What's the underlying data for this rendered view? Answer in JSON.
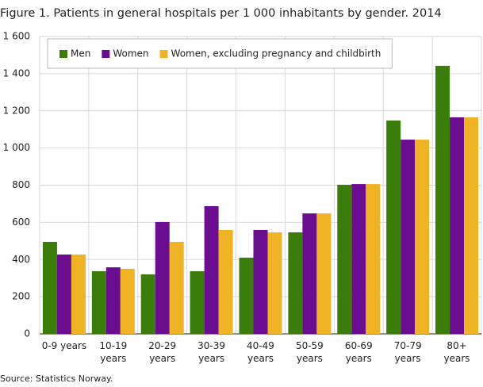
{
  "chart_data": {
    "type": "bar",
    "title": "Figure 1. Patients in general hospitals per 1 000 inhabitants by gender. 2014",
    "source": "Source: Statistics Norway.",
    "categories": [
      "0-9 years",
      "10-19 years",
      "20-29 years",
      "30-39 years",
      "40-49 years",
      "50-59 years",
      "60-69 years",
      "70-79 years",
      "80+ years"
    ],
    "series": [
      {
        "name": "Men",
        "color": "#3a7d0a",
        "values": [
          495,
          337,
          320,
          337,
          410,
          546,
          802,
          1148,
          1442
        ]
      },
      {
        "name": "Women",
        "color": "#6a0d91",
        "values": [
          427,
          358,
          602,
          687,
          559,
          648,
          806,
          1045,
          1165
        ]
      },
      {
        "name": "Women, excluding pregnancy and childbirth",
        "color": "#f0b323",
        "values": [
          427,
          350,
          495,
          559,
          546,
          648,
          806,
          1045,
          1165
        ]
      }
    ],
    "ylim": [
      0,
      1600
    ],
    "yticks": [
      0,
      200,
      400,
      600,
      800,
      {
        "value": 1000,
        "label": "1 000"
      },
      {
        "value": 1200,
        "label": "1 200"
      },
      {
        "value": 1400,
        "label": "1 400"
      },
      {
        "value": 1600,
        "label": "1 600"
      }
    ],
    "grid": true,
    "legend": "top-left"
  }
}
